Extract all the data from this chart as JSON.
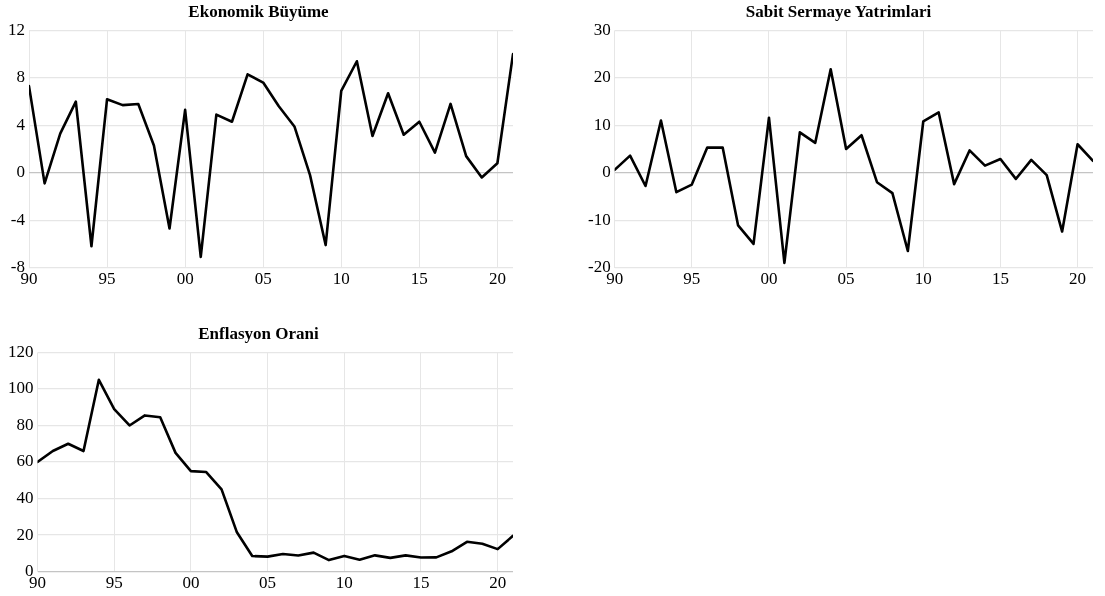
{
  "chart_data": [
    {
      "type": "line",
      "title": "Ekonomik Büyüme",
      "x": [
        1990,
        1991,
        1992,
        1993,
        1994,
        1995,
        1996,
        1997,
        1998,
        1999,
        2000,
        2001,
        2002,
        2003,
        2004,
        2005,
        2006,
        2007,
        2008,
        2009,
        2010,
        2011,
        2012,
        2013,
        2014,
        2015,
        2016,
        2017,
        2018,
        2019,
        2020,
        2021
      ],
      "series": [
        {
          "color": "#000000",
          "values": [
            7.3,
            -0.9,
            3.3,
            6.0,
            -6.2,
            6.2,
            5.7,
            5.8,
            2.3,
            -4.7,
            5.3,
            -7.1,
            4.9,
            4.3,
            8.3,
            7.6,
            5.6,
            3.9,
            -0.2,
            -6.1,
            6.9,
            9.4,
            3.1,
            6.7,
            3.2,
            4.3,
            1.7,
            5.8,
            1.4,
            -0.4,
            0.8,
            10.0
          ]
        }
      ],
      "xlim": [
        1990,
        2021
      ],
      "xticks": [
        {
          "value": 1990,
          "label": "90"
        },
        {
          "value": 1995,
          "label": "95"
        },
        {
          "value": 2000,
          "label": "00"
        },
        {
          "value": 2005,
          "label": "05"
        },
        {
          "value": 2010,
          "label": "10"
        },
        {
          "value": 2015,
          "label": "15"
        },
        {
          "value": 2020,
          "label": "20"
        }
      ],
      "ylim": [
        -8,
        12
      ],
      "yticks": [
        -8,
        -4,
        0,
        4,
        8,
        12
      ],
      "grid": true,
      "legend": false,
      "marker": "none",
      "line_style": "solid"
    },
    {
      "type": "line",
      "title": "Sabit Sermaye Yatrimlari",
      "x": [
        1990,
        1991,
        1992,
        1993,
        1994,
        1995,
        1996,
        1997,
        1998,
        1999,
        2000,
        2001,
        2002,
        2003,
        2004,
        2005,
        2006,
        2007,
        2008,
        2009,
        2010,
        2011,
        2012,
        2013,
        2014,
        2015,
        2016,
        2017,
        2018,
        2019,
        2020,
        2021
      ],
      "series": [
        {
          "color": "#000000",
          "values": [
            0.6,
            3.6,
            -2.8,
            11,
            -4.1,
            -2.5,
            5.3,
            5.3,
            -11.1,
            -15,
            11.6,
            -19,
            8.5,
            6.3,
            21.8,
            5,
            7.9,
            -2,
            -4.3,
            -16.5,
            10.8,
            12.7,
            -2.4,
            4.7,
            1.5,
            2.9,
            -1.3,
            2.7,
            -0.5,
            -12.4,
            6,
            2.5
          ]
        }
      ],
      "xlim": [
        1990,
        2021
      ],
      "xticks": [
        {
          "value": 1990,
          "label": "90"
        },
        {
          "value": 1995,
          "label": "95"
        },
        {
          "value": 2000,
          "label": "00"
        },
        {
          "value": 2005,
          "label": "05"
        },
        {
          "value": 2010,
          "label": "10"
        },
        {
          "value": 2015,
          "label": "15"
        },
        {
          "value": 2020,
          "label": "20"
        }
      ],
      "ylim": [
        -20,
        30
      ],
      "yticks": [
        -20,
        -10,
        0,
        10,
        20,
        30
      ],
      "grid": true,
      "legend": false,
      "marker": "none",
      "line_style": "solid"
    },
    {
      "type": "line",
      "title": "Enflasyon Orani",
      "x": [
        1990,
        1991,
        1992,
        1993,
        1994,
        1995,
        1996,
        1997,
        1998,
        1999,
        2000,
        2001,
        2002,
        2003,
        2004,
        2005,
        2006,
        2007,
        2008,
        2009,
        2010,
        2011,
        2012,
        2013,
        2014,
        2015,
        2016,
        2017,
        2018,
        2019,
        2020,
        2021
      ],
      "series": [
        {
          "color": "#000000",
          "values": [
            60,
            66,
            70,
            66,
            105,
            89,
            80,
            85.5,
            84.5,
            65,
            55,
            54.5,
            45,
            21.5,
            8.5,
            8.2,
            9.6,
            8.8,
            10.4,
            6.3,
            8.6,
            6.5,
            8.9,
            7.5,
            8.9,
            7.7,
            7.8,
            11.1,
            16.3,
            15.2,
            12.3,
            19.6
          ]
        }
      ],
      "xlim": [
        1990,
        2021
      ],
      "xticks": [
        {
          "value": 1990,
          "label": "90"
        },
        {
          "value": 1995,
          "label": "95"
        },
        {
          "value": 2000,
          "label": "00"
        },
        {
          "value": 2005,
          "label": "05"
        },
        {
          "value": 2010,
          "label": "10"
        },
        {
          "value": 2015,
          "label": "15"
        },
        {
          "value": 2020,
          "label": "20"
        }
      ],
      "ylim": [
        0,
        120
      ],
      "yticks": [
        0,
        20,
        40,
        60,
        80,
        100,
        120
      ],
      "grid": true,
      "legend": false,
      "marker": "none",
      "line_style": "solid"
    }
  ]
}
